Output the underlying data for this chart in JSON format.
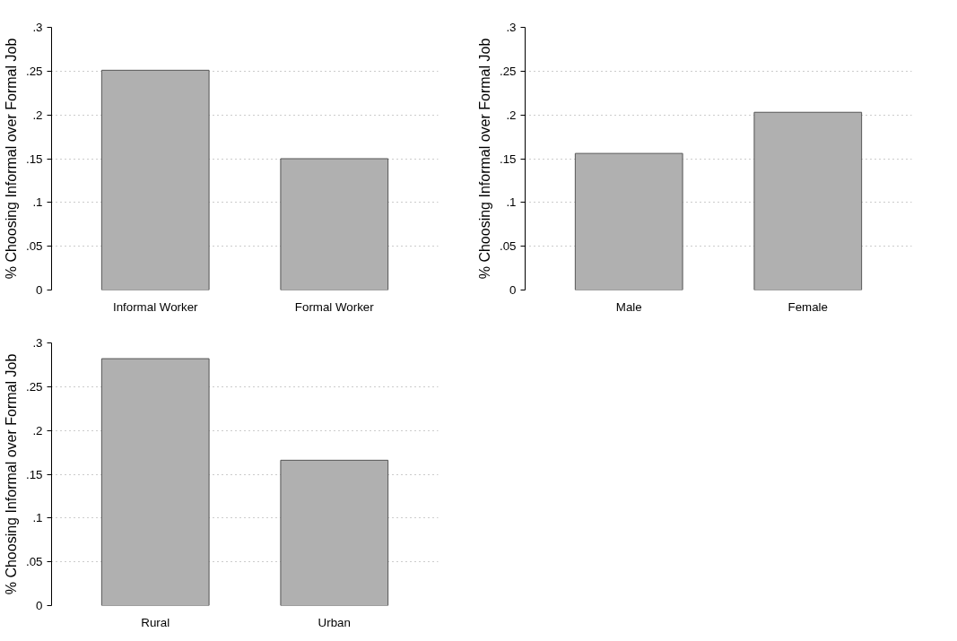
{
  "chart_data": [
    {
      "type": "bar",
      "ylabel": "% Choosing Informal over Formal Job",
      "categories": [
        "Informal Worker",
        "Formal Worker"
      ],
      "values": [
        0.251,
        0.15
      ],
      "color": "#b0b0b0",
      "ylim": [
        0,
        0.3
      ],
      "yticks": [
        0,
        {
          "value": 0.05,
          "label": ".05"
        },
        {
          "value": 0.1,
          "label": ".1"
        },
        {
          "value": 0.15,
          "label": ".15"
        },
        {
          "value": 0.2,
          "label": ".2"
        },
        {
          "value": 0.25,
          "label": ".25"
        },
        {
          "value": 0.3,
          "label": ".3"
        }
      ],
      "grid": "y"
    },
    {
      "type": "bar",
      "ylabel": "% Choosing Informal over Formal Job",
      "categories": [
        "Male",
        "Female"
      ],
      "values": [
        0.156,
        0.203
      ],
      "color": "#b0b0b0",
      "ylim": [
        0,
        0.3
      ],
      "yticks": [
        0,
        {
          "value": 0.05,
          "label": ".05"
        },
        {
          "value": 0.1,
          "label": ".1"
        },
        {
          "value": 0.15,
          "label": ".15"
        },
        {
          "value": 0.2,
          "label": ".2"
        },
        {
          "value": 0.25,
          "label": ".25"
        },
        {
          "value": 0.3,
          "label": ".3"
        }
      ],
      "grid": "y"
    },
    {
      "type": "bar",
      "ylabel": "% Choosing Informal over Formal Job",
      "categories": [
        "Rural",
        "Urban"
      ],
      "values": [
        0.282,
        0.166
      ],
      "color": "#b0b0b0",
      "ylim": [
        0,
        0.3
      ],
      "yticks": [
        0,
        {
          "value": 0.05,
          "label": ".05"
        },
        {
          "value": 0.1,
          "label": ".1"
        },
        {
          "value": 0.15,
          "label": ".15"
        },
        {
          "value": 0.2,
          "label": ".2"
        },
        {
          "value": 0.25,
          "label": ".25"
        },
        {
          "value": 0.3,
          "label": ".3"
        }
      ],
      "grid": "y"
    }
  ]
}
